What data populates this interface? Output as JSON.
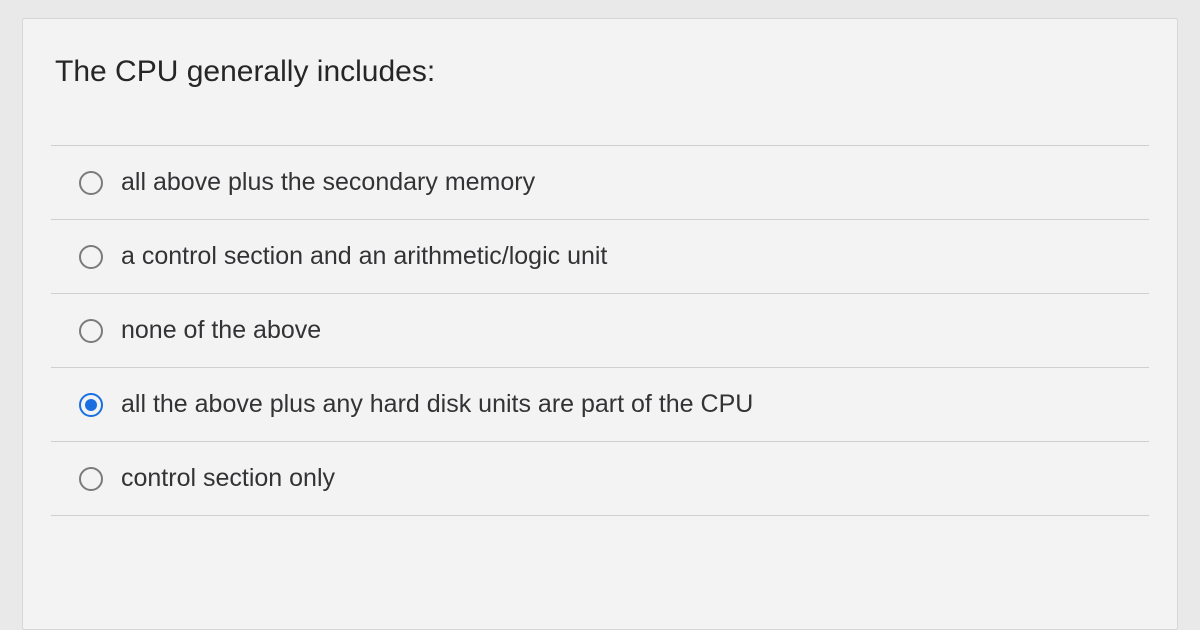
{
  "question": "The CPU generally includes:",
  "options": [
    {
      "label": "all above plus the secondary memory",
      "selected": false
    },
    {
      "label": "a control section and an arithmetic/logic unit",
      "selected": false
    },
    {
      "label": "none of the above",
      "selected": false
    },
    {
      "label": "all the above plus any hard disk units are part of the CPU",
      "selected": true
    },
    {
      "label": "control section only",
      "selected": false
    }
  ],
  "colors": {
    "page_bg": "#e9e9ea",
    "card_bg": "#f3f3f4",
    "border": "#cfcfd1",
    "text": "#2a2a2a",
    "radio_unselected": "#7b7b7d",
    "radio_selected": "#1a6fe0"
  },
  "typography": {
    "question_fontsize": 30,
    "option_fontsize": 25,
    "font_family": "Segoe UI / Helvetica Neue"
  }
}
